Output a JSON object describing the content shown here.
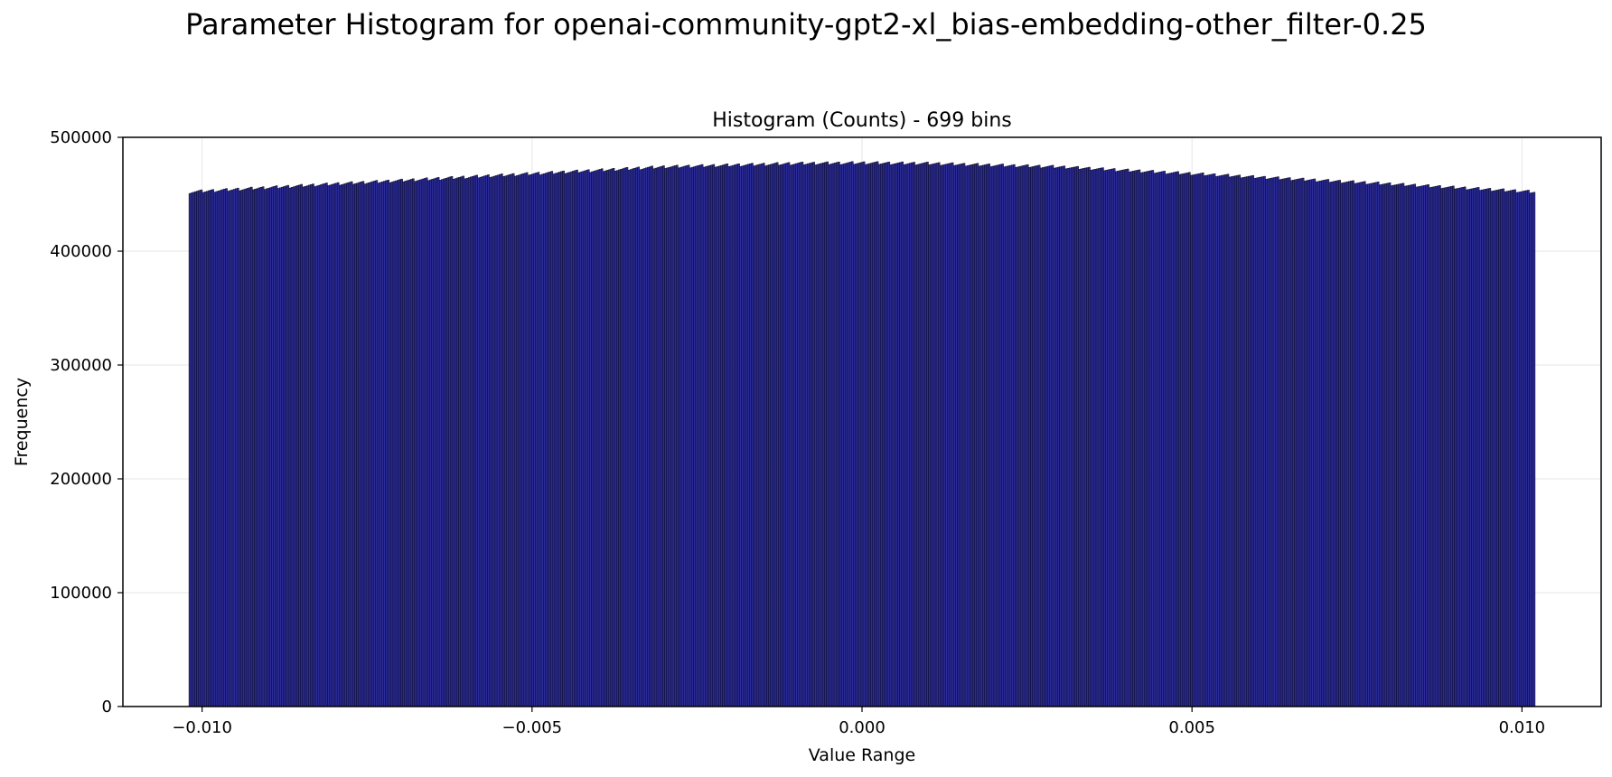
{
  "figure_title": "Parameter Histogram for openai-community-gpt2-xl_bias-embedding-other_filter-0.25",
  "chart_data": {
    "type": "bar",
    "title": "Histogram (Counts) - 699 bins",
    "xlabel": "Value Range",
    "ylabel": "Frequency",
    "bins": 699,
    "xlim": [
      -0.0112,
      0.0112
    ],
    "ylim": [
      0,
      500000
    ],
    "x_range": [
      -0.0102,
      0.0102
    ],
    "xticks": [
      -0.01,
      -0.005,
      0.0,
      0.005,
      0.01
    ],
    "xtick_labels": [
      "−0.010",
      "−0.005",
      "0.000",
      "0.005",
      "0.010"
    ],
    "yticks": [
      0,
      100000,
      200000,
      300000,
      400000,
      500000
    ],
    "ytick_labels": [
      "0",
      "100000",
      "200000",
      "300000",
      "400000",
      "500000"
    ],
    "profile_x": [
      -0.0102,
      -0.008,
      -0.005,
      -0.003,
      -0.001,
      0.0,
      0.001,
      0.003,
      0.005,
      0.008,
      0.0102
    ],
    "profile_y": [
      452000,
      459000,
      468000,
      474000,
      477000,
      477500,
      477000,
      474000,
      468000,
      459000,
      452000
    ],
    "grid": true,
    "bar_color": "#2b2b9b",
    "edge_color": "#000000"
  }
}
